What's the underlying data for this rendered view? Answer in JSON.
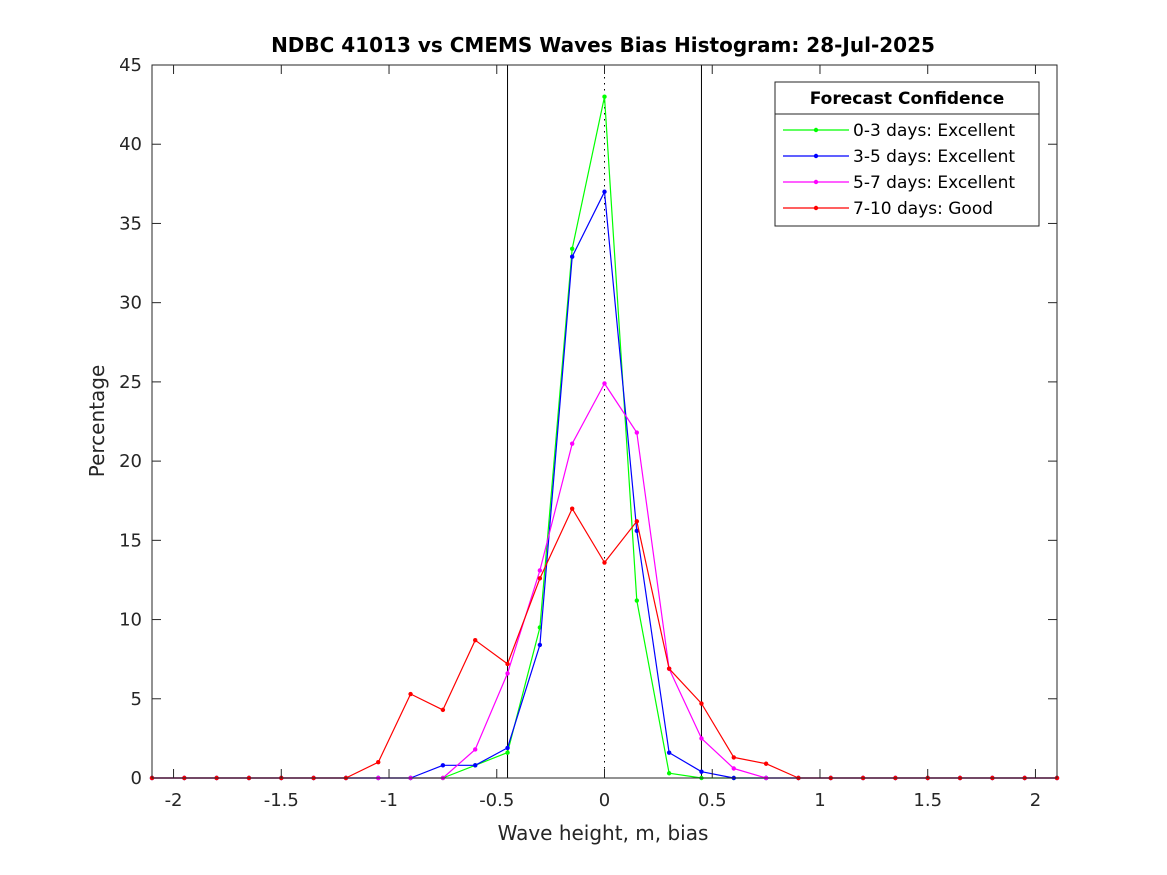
{
  "chart_data": {
    "type": "line",
    "title": "NDBC 41013 vs CMEMS Waves Bias Histogram: 28-Jul-2025",
    "xlabel": "Wave height, m, bias",
    "ylabel": "Percentage",
    "xlim": [
      -2.1,
      2.1
    ],
    "ylim": [
      0,
      45
    ],
    "xticks": [
      -2,
      -1.5,
      -1,
      -0.5,
      0,
      0.5,
      1,
      1.5,
      2
    ],
    "xtick_labels": [
      "-2",
      "-1.5",
      "-1",
      "-0.5",
      "0",
      "0.5",
      "1",
      "1.5",
      "2"
    ],
    "yticks": [
      0,
      5,
      10,
      15,
      20,
      25,
      30,
      35,
      40,
      45
    ],
    "ytick_labels": [
      "0",
      "5",
      "10",
      "15",
      "20",
      "25",
      "30",
      "35",
      "40",
      "45"
    ],
    "grid": false,
    "vertical_lines": [
      {
        "x": -0.45,
        "style": "solid",
        "color": "#000000"
      },
      {
        "x": 0,
        "style": "dotted",
        "color": "#000000"
      },
      {
        "x": 0.45,
        "style": "solid",
        "color": "#000000"
      }
    ],
    "legend": {
      "title": "Forecast Confidence",
      "position": "top-right"
    },
    "x": [
      -2.1,
      -1.95,
      -1.8,
      -1.65,
      -1.5,
      -1.35,
      -1.2,
      -1.05,
      -0.9,
      -0.75,
      -0.6,
      -0.45,
      -0.3,
      -0.15,
      0,
      0.15,
      0.3,
      0.45,
      0.6,
      0.75,
      0.9,
      1.05,
      1.2,
      1.35,
      1.5,
      1.65,
      1.8,
      1.95,
      2.1
    ],
    "series": [
      {
        "name": "0-3 days: Excellent",
        "color": "#00ff00",
        "values": [
          0,
          0,
          0,
          0,
          0,
          0,
          0,
          0,
          0,
          0,
          0.8,
          1.6,
          9.5,
          33.4,
          43.0,
          11.2,
          0.3,
          0,
          0,
          0,
          0,
          0,
          0,
          0,
          0,
          0,
          0,
          0,
          0
        ]
      },
      {
        "name": "3-5 days: Excellent",
        "color": "#0000ff",
        "values": [
          0,
          0,
          0,
          0,
          0,
          0,
          0,
          0,
          0,
          0.8,
          0.8,
          1.9,
          8.4,
          32.9,
          37.0,
          15.6,
          1.6,
          0.4,
          0,
          0,
          0,
          0,
          0,
          0,
          0,
          0,
          0,
          0,
          0
        ]
      },
      {
        "name": "5-7 days: Excellent",
        "color": "#ff00ff",
        "values": [
          0,
          0,
          0,
          0,
          0,
          0,
          0,
          0,
          0,
          0,
          1.8,
          6.6,
          13.1,
          21.1,
          24.9,
          21.8,
          6.9,
          2.5,
          0.6,
          0,
          0,
          0,
          0,
          0,
          0,
          0,
          0,
          0,
          0
        ]
      },
      {
        "name": "7-10 days: Good",
        "color": "#ff0000",
        "values": [
          0,
          0,
          0,
          0,
          0,
          0,
          0,
          1.0,
          5.3,
          4.3,
          8.7,
          7.2,
          12.6,
          17.0,
          13.6,
          16.2,
          6.9,
          4.7,
          1.3,
          0.9,
          0,
          0,
          0,
          0,
          0,
          0,
          0,
          0,
          0
        ]
      }
    ]
  }
}
